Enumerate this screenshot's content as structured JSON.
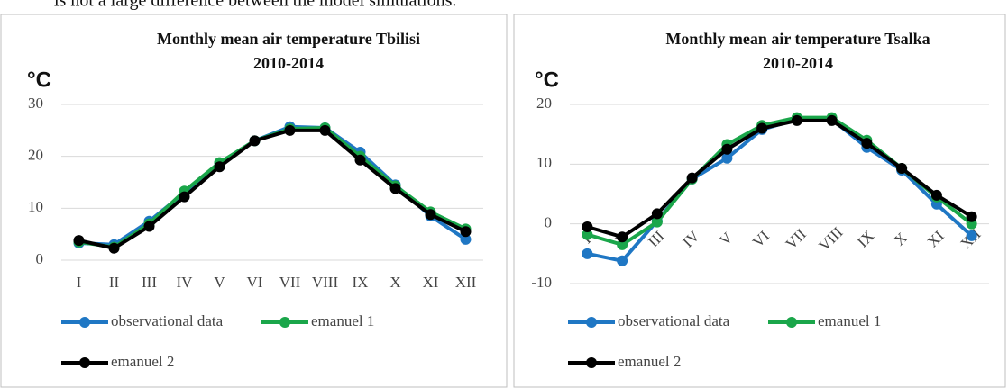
{
  "intro_text": "is not a large difference between the model simulations.",
  "chart_data": [
    {
      "type": "line",
      "title": "Monthly mean air temperature Tbilisi",
      "subtitle": "2010-2014",
      "y_label": "°C",
      "categories": [
        "I",
        "II",
        "III",
        "IV",
        "V",
        "VI",
        "VII",
        "VIII",
        "IX",
        "X",
        "XI",
        "XII"
      ],
      "ylim": [
        0,
        30
      ],
      "yticks": [
        0,
        10,
        20,
        30
      ],
      "grid": true,
      "legend": "bottom",
      "series": [
        {
          "name": "observational data",
          "color": "#1f77c4",
          "values": [
            3.3,
            3.0,
            7.5,
            13.0,
            18.7,
            23.0,
            25.7,
            25.5,
            20.8,
            14.5,
            8.5,
            4.0
          ]
        },
        {
          "name": "emanuel 1",
          "color": "#1aa64a",
          "values": [
            3.5,
            2.5,
            7.0,
            13.3,
            18.8,
            23.0,
            25.3,
            25.5,
            20.0,
            14.3,
            9.3,
            6.0
          ]
        },
        {
          "name": "emanuel 2",
          "color": "#000000",
          "values": [
            3.8,
            2.3,
            6.5,
            12.2,
            18.0,
            23.0,
            25.0,
            25.0,
            19.3,
            13.8,
            8.8,
            5.5
          ]
        }
      ]
    },
    {
      "type": "line",
      "title": "Monthly mean air temperature Tsalka",
      "subtitle": "2010-2014",
      "y_label": "°C",
      "categories": [
        "I",
        "II",
        "III",
        "IV",
        "V",
        "VI",
        "VII",
        "VIII",
        "IX",
        "X",
        "XI",
        "XII"
      ],
      "ylim": [
        -10,
        20
      ],
      "yticks": [
        -10,
        0,
        10,
        20
      ],
      "grid": true,
      "legend": "bottom",
      "series": [
        {
          "name": "observational data",
          "color": "#1f77c4",
          "values": [
            -5.0,
            -6.2,
            0.5,
            7.5,
            11.0,
            15.8,
            17.5,
            17.5,
            12.8,
            9.0,
            3.3,
            -2.0
          ]
        },
        {
          "name": "emanuel 1",
          "color": "#1aa64a",
          "values": [
            -1.8,
            -3.5,
            0.3,
            7.5,
            13.3,
            16.5,
            17.8,
            17.8,
            14.0,
            9.3,
            4.5,
            0.0
          ]
        },
        {
          "name": "emanuel 2",
          "color": "#000000",
          "values": [
            -0.5,
            -2.2,
            1.7,
            7.7,
            12.5,
            16.0,
            17.3,
            17.3,
            13.5,
            9.3,
            4.8,
            1.2
          ]
        }
      ]
    }
  ]
}
